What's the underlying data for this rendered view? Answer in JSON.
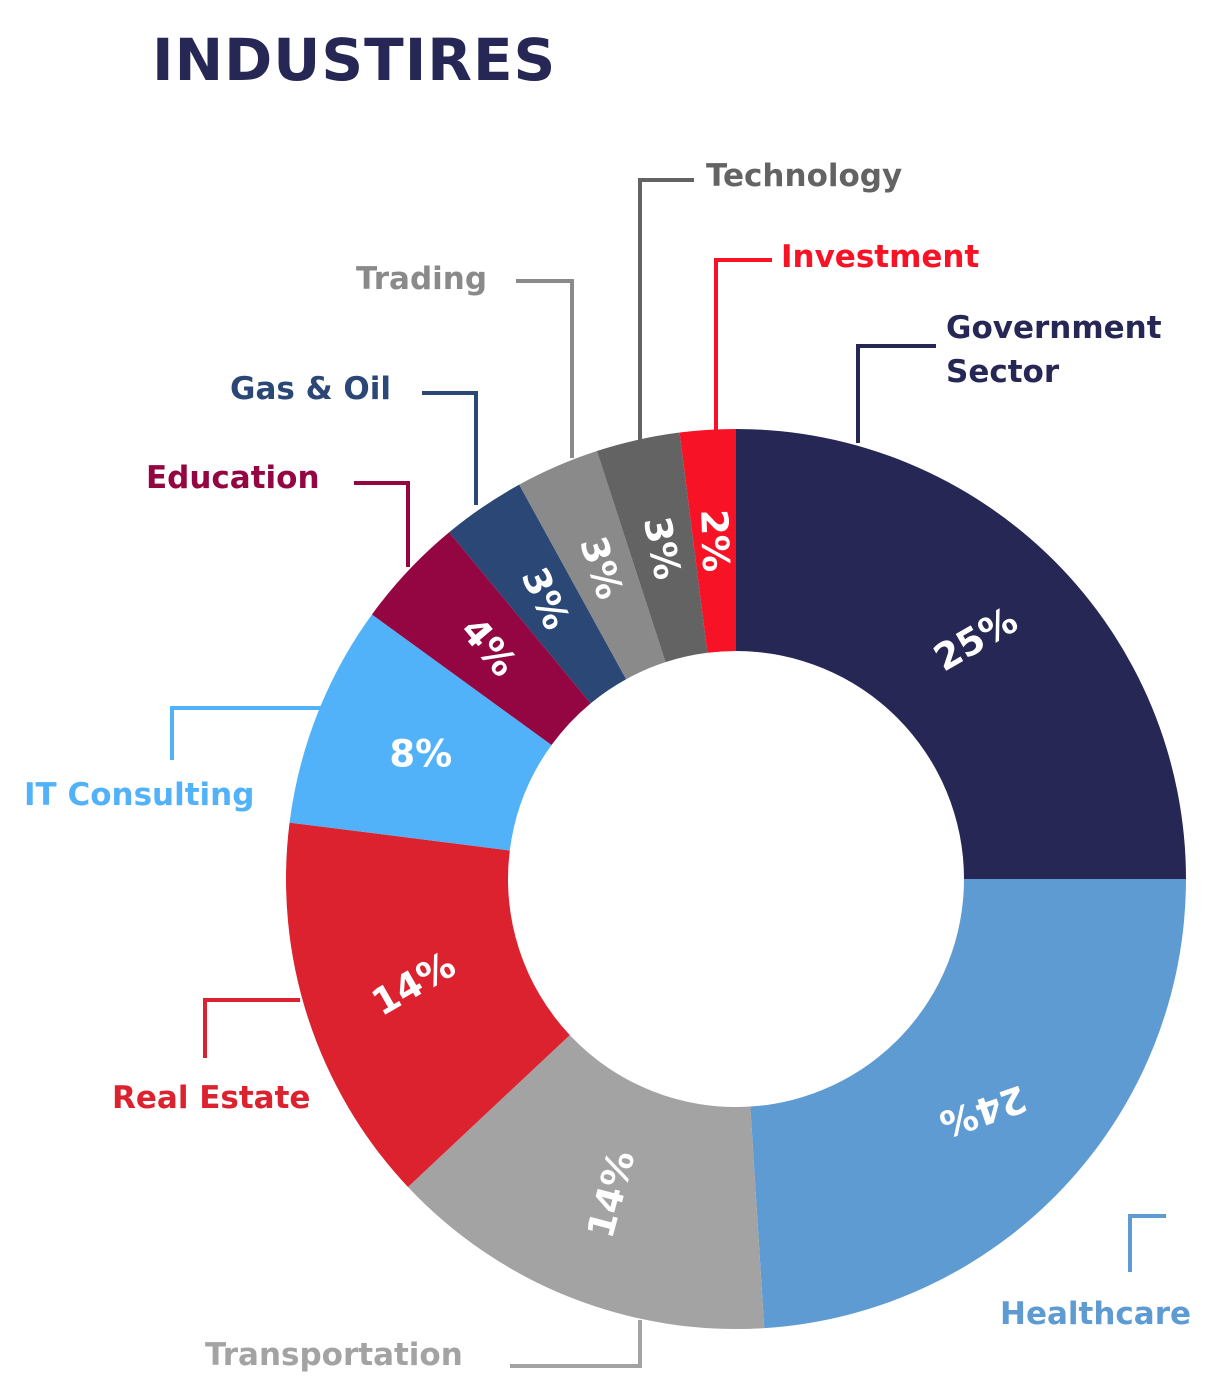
{
  "chart_data": {
    "type": "pie",
    "variant": "donut",
    "title": "INDUSTIRES",
    "slices": [
      {
        "label": "Government Sector",
        "value": 25,
        "display": "25%",
        "color": "#262755"
      },
      {
        "label": "Healthcare",
        "value": 24,
        "display": "24%",
        "color": "#5e9bd3"
      },
      {
        "label": "Transportation",
        "value": 14,
        "display": "14%",
        "color": "#a3a3a3"
      },
      {
        "label": "Real Estate",
        "value": 14,
        "display": "14%",
        "color": "#dc222f"
      },
      {
        "label": "IT Consulting",
        "value": 8,
        "display": "8%",
        "color": "#51b2f9"
      },
      {
        "label": "Education",
        "value": 4,
        "display": "4%",
        "color": "#940641"
      },
      {
        "label": "Gas & Oil",
        "value": 3,
        "display": "3%",
        "color": "#2a4775"
      },
      {
        "label": "Trading",
        "value": 3,
        "display": "3%",
        "color": "#8a8a8a"
      },
      {
        "label": "Technology",
        "value": 3,
        "display": "3%",
        "color": "#636363"
      },
      {
        "label": "Investment",
        "value": 2,
        "display": "2%",
        "color": "#f81226"
      }
    ],
    "category_label_lines": [
      [
        "Government",
        "Sector"
      ],
      [
        "Healthcare"
      ],
      [
        "Transportation"
      ],
      [
        "Real Estate"
      ],
      [
        "IT Consulting"
      ],
      [
        "Education"
      ],
      [
        "Gas & Oil"
      ],
      [
        "Trading"
      ],
      [
        "Technology"
      ],
      [
        "Investment"
      ]
    ],
    "start_angle_deg": 0,
    "direction": "clockwise",
    "legend": "callout-labels"
  }
}
